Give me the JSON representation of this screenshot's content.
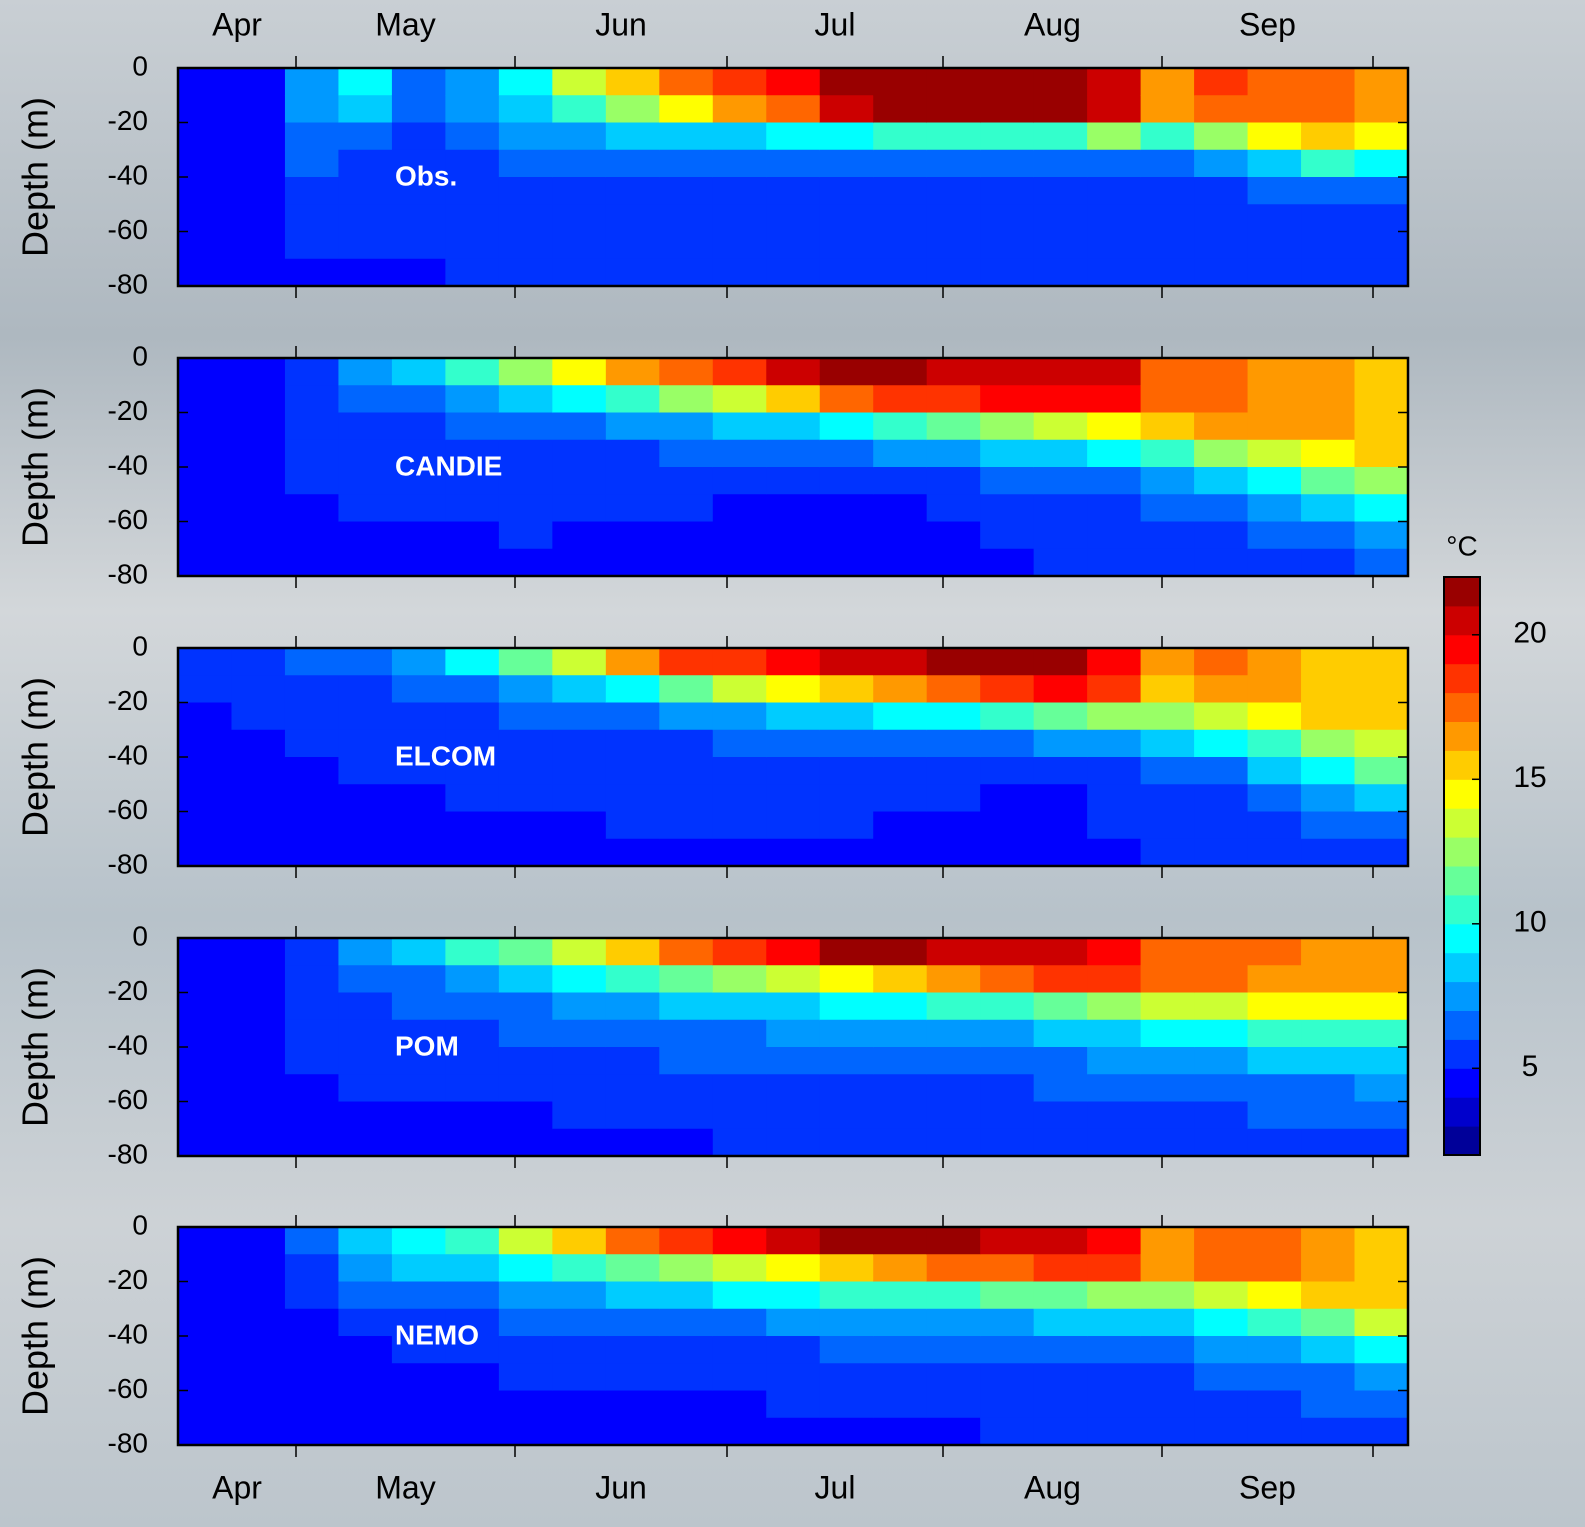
{
  "chart_data": {
    "type": "heatmap",
    "categories": [
      "Apr",
      "May",
      "Jun",
      "Jul",
      "Aug",
      "Sep",
      null
    ],
    "ylabel": "Depth (m)",
    "ylim": [
      -80,
      0
    ],
    "yticks": [
      0,
      -20,
      -40,
      -60,
      -80
    ],
    "colormap": "jet",
    "colorbar": {
      "label": "°C",
      "clim": [
        2,
        22
      ],
      "ticks": [
        5,
        10,
        15,
        20
      ]
    },
    "panels": [
      {
        "label": "Obs.",
        "values": [
          [
            4,
            4,
            4,
            4,
            4,
            4,
            4,
            4
          ],
          [
            4,
            4,
            4,
            4,
            4,
            4,
            4,
            4
          ],
          [
            7,
            7,
            6,
            6,
            5,
            5,
            5,
            4
          ],
          [
            9,
            8,
            6,
            5,
            5,
            5,
            5,
            4
          ],
          [
            6,
            6,
            5,
            5,
            5,
            5,
            5,
            4
          ],
          [
            7,
            7,
            6,
            5,
            5,
            5,
            5,
            5
          ],
          [
            9,
            8,
            7,
            6,
            5,
            5,
            5,
            5
          ],
          [
            13,
            10,
            7,
            6,
            5,
            5,
            5,
            5
          ],
          [
            15,
            12,
            8,
            6,
            5,
            5,
            5,
            5
          ],
          [
            17,
            14,
            8,
            6,
            5,
            5,
            5,
            5
          ],
          [
            18,
            16,
            8,
            6,
            5,
            5,
            5,
            5
          ],
          [
            19,
            17,
            9,
            6,
            5,
            5,
            5,
            5
          ],
          [
            21,
            20,
            9,
            6,
            5,
            5,
            5,
            5
          ],
          [
            21,
            21,
            10,
            6,
            5,
            5,
            5,
            5
          ],
          [
            21,
            21,
            10,
            6,
            5,
            5,
            5,
            5
          ],
          [
            21,
            21,
            10,
            6,
            5,
            5,
            5,
            5
          ],
          [
            21,
            21,
            10,
            6,
            5,
            5,
            5,
            5
          ],
          [
            20,
            20,
            12,
            6,
            5,
            5,
            5,
            5
          ],
          [
            16,
            16,
            10,
            6,
            5,
            5,
            5,
            5
          ],
          [
            18,
            17,
            12,
            7,
            5,
            5,
            5,
            5
          ],
          [
            17,
            17,
            14,
            8,
            6,
            5,
            5,
            5
          ],
          [
            17,
            17,
            15,
            10,
            6,
            5,
            5,
            5
          ],
          [
            16,
            16,
            14,
            9,
            6,
            5,
            5,
            5
          ]
        ]
      },
      {
        "label": "CANDIE",
        "values": [
          [
            4,
            4,
            4,
            4,
            4,
            4,
            4,
            4
          ],
          [
            4,
            4,
            4,
            4,
            4,
            4,
            4,
            4
          ],
          [
            5,
            5,
            5,
            5,
            5,
            4,
            4,
            4
          ],
          [
            7,
            6,
            5,
            5,
            5,
            5,
            4,
            4
          ],
          [
            8,
            6,
            5,
            5,
            5,
            5,
            4,
            4
          ],
          [
            10,
            7,
            6,
            5,
            5,
            5,
            4,
            4
          ],
          [
            12,
            8,
            6,
            5,
            5,
            5,
            5,
            4
          ],
          [
            14,
            9,
            6,
            5,
            5,
            5,
            4,
            4
          ],
          [
            16,
            10,
            7,
            5,
            5,
            5,
            4,
            4
          ],
          [
            17,
            12,
            7,
            6,
            5,
            5,
            4,
            4
          ],
          [
            18,
            13,
            8,
            6,
            5,
            4,
            4,
            4
          ],
          [
            20,
            15,
            8,
            6,
            5,
            4,
            4,
            4
          ],
          [
            21,
            17,
            9,
            6,
            5,
            4,
            4,
            4
          ],
          [
            21,
            18,
            10,
            7,
            5,
            4,
            4,
            4
          ],
          [
            20,
            18,
            11,
            7,
            5,
            5,
            4,
            4
          ],
          [
            20,
            19,
            12,
            8,
            6,
            5,
            5,
            4
          ],
          [
            20,
            19,
            13,
            8,
            6,
            5,
            5,
            5
          ],
          [
            20,
            19,
            14,
            9,
            6,
            5,
            5,
            5
          ],
          [
            17,
            17,
            15,
            10,
            7,
            6,
            5,
            5
          ],
          [
            17,
            17,
            16,
            12,
            8,
            6,
            5,
            5
          ],
          [
            16,
            16,
            16,
            13,
            9,
            7,
            6,
            5
          ],
          [
            16,
            16,
            16,
            14,
            11,
            8,
            6,
            5
          ],
          [
            15,
            15,
            15,
            15,
            12,
            9,
            7,
            6
          ]
        ]
      },
      {
        "label": "ELCOM",
        "values": [
          [
            5,
            5,
            4,
            4,
            4,
            4,
            4,
            4
          ],
          [
            5,
            5,
            5,
            4,
            4,
            4,
            4,
            4
          ],
          [
            6,
            5,
            5,
            5,
            4,
            4,
            4,
            4
          ],
          [
            6,
            5,
            5,
            5,
            5,
            4,
            4,
            4
          ],
          [
            7,
            6,
            5,
            5,
            5,
            4,
            4,
            4
          ],
          [
            9,
            6,
            5,
            5,
            5,
            5,
            4,
            4
          ],
          [
            11,
            7,
            6,
            5,
            5,
            5,
            4,
            4
          ],
          [
            13,
            8,
            6,
            5,
            5,
            5,
            4,
            4
          ],
          [
            16,
            9,
            6,
            5,
            5,
            5,
            5,
            4
          ],
          [
            18,
            11,
            7,
            5,
            5,
            5,
            5,
            4
          ],
          [
            18,
            13,
            7,
            6,
            5,
            5,
            5,
            4
          ],
          [
            19,
            14,
            8,
            6,
            5,
            5,
            5,
            4
          ],
          [
            20,
            15,
            8,
            6,
            5,
            5,
            5,
            4
          ],
          [
            20,
            16,
            9,
            6,
            5,
            5,
            4,
            4
          ],
          [
            21,
            17,
            9,
            6,
            5,
            5,
            4,
            4
          ],
          [
            21,
            18,
            10,
            6,
            5,
            4,
            4,
            4
          ],
          [
            21,
            19,
            11,
            7,
            5,
            4,
            4,
            4
          ],
          [
            19,
            18,
            12,
            7,
            5,
            5,
            5,
            4
          ],
          [
            16,
            15,
            12,
            8,
            6,
            5,
            5,
            5
          ],
          [
            17,
            16,
            13,
            9,
            6,
            5,
            5,
            5
          ],
          [
            16,
            16,
            14,
            10,
            8,
            6,
            5,
            5
          ],
          [
            15,
            15,
            15,
            12,
            9,
            7,
            6,
            5
          ],
          [
            15,
            15,
            15,
            13,
            11,
            8,
            6,
            5
          ]
        ]
      },
      {
        "label": "POM",
        "values": [
          [
            4,
            4,
            4,
            4,
            4,
            4,
            4,
            4
          ],
          [
            4,
            4,
            4,
            4,
            4,
            4,
            4,
            4
          ],
          [
            5,
            5,
            5,
            5,
            5,
            4,
            4,
            4
          ],
          [
            7,
            6,
            5,
            5,
            5,
            5,
            4,
            4
          ],
          [
            8,
            6,
            6,
            5,
            5,
            5,
            4,
            4
          ],
          [
            10,
            7,
            6,
            5,
            5,
            5,
            4,
            4
          ],
          [
            11,
            8,
            6,
            6,
            5,
            5,
            4,
            4
          ],
          [
            13,
            9,
            7,
            6,
            5,
            5,
            5,
            4
          ],
          [
            15,
            10,
            7,
            6,
            5,
            5,
            5,
            4
          ],
          [
            17,
            11,
            8,
            6,
            6,
            5,
            5,
            4
          ],
          [
            18,
            12,
            8,
            6,
            6,
            5,
            5,
            5
          ],
          [
            19,
            13,
            8,
            7,
            6,
            5,
            5,
            5
          ],
          [
            21,
            14,
            9,
            7,
            6,
            5,
            5,
            5
          ],
          [
            21,
            15,
            9,
            7,
            6,
            5,
            5,
            5
          ],
          [
            20,
            16,
            10,
            7,
            6,
            5,
            5,
            5
          ],
          [
            20,
            17,
            10,
            7,
            6,
            5,
            5,
            5
          ],
          [
            20,
            18,
            11,
            8,
            6,
            6,
            5,
            5
          ],
          [
            19,
            18,
            12,
            8,
            7,
            6,
            5,
            5
          ],
          [
            17,
            17,
            13,
            9,
            7,
            6,
            5,
            5
          ],
          [
            17,
            17,
            13,
            9,
            7,
            6,
            5,
            5
          ],
          [
            17,
            16,
            14,
            10,
            8,
            6,
            6,
            5
          ],
          [
            16,
            16,
            14,
            10,
            8,
            6,
            6,
            5
          ],
          [
            16,
            16,
            14,
            10,
            8,
            7,
            6,
            5
          ]
        ]
      },
      {
        "label": "NEMO",
        "values": [
          [
            4,
            4,
            4,
            4,
            4,
            4,
            4,
            4
          ],
          [
            4,
            4,
            4,
            4,
            4,
            4,
            4,
            4
          ],
          [
            6,
            5,
            5,
            4,
            4,
            4,
            4,
            4
          ],
          [
            8,
            7,
            6,
            5,
            4,
            4,
            4,
            4
          ],
          [
            9,
            8,
            6,
            5,
            5,
            4,
            4,
            4
          ],
          [
            10,
            8,
            6,
            5,
            5,
            4,
            4,
            4
          ],
          [
            13,
            9,
            7,
            6,
            5,
            5,
            4,
            4
          ],
          [
            15,
            10,
            7,
            6,
            5,
            5,
            4,
            4
          ],
          [
            17,
            11,
            8,
            6,
            5,
            5,
            4,
            4
          ],
          [
            18,
            12,
            8,
            6,
            5,
            5,
            4,
            4
          ],
          [
            19,
            13,
            9,
            6,
            5,
            5,
            4,
            4
          ],
          [
            20,
            14,
            9,
            7,
            5,
            5,
            5,
            4
          ],
          [
            21,
            15,
            10,
            7,
            6,
            5,
            5,
            4
          ],
          [
            21,
            16,
            10,
            7,
            6,
            5,
            5,
            4
          ],
          [
            21,
            17,
            10,
            7,
            6,
            5,
            5,
            4
          ],
          [
            20,
            17,
            11,
            7,
            6,
            5,
            5,
            5
          ],
          [
            20,
            18,
            11,
            8,
            6,
            5,
            5,
            5
          ],
          [
            19,
            18,
            12,
            8,
            6,
            5,
            5,
            5
          ],
          [
            16,
            16,
            12,
            8,
            6,
            5,
            5,
            5
          ],
          [
            17,
            17,
            13,
            9,
            7,
            6,
            5,
            5
          ],
          [
            17,
            17,
            14,
            10,
            7,
            6,
            5,
            5
          ],
          [
            16,
            16,
            15,
            11,
            8,
            6,
            6,
            5
          ],
          [
            15,
            15,
            15,
            13,
            9,
            7,
            6,
            5
          ]
        ]
      }
    ]
  }
}
